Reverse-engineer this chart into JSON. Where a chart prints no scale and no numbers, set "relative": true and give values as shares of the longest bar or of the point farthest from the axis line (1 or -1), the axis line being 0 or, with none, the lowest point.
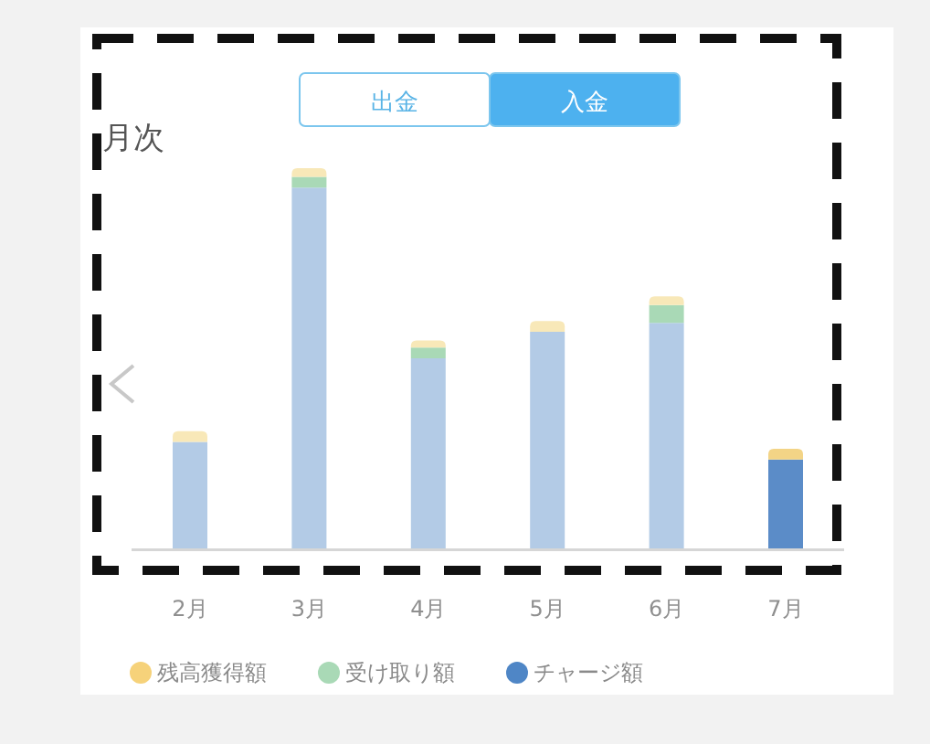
{
  "chart_data": {
    "type": "bar",
    "title": "月次",
    "stacked": true,
    "relative": true,
    "legend": "bottom",
    "categories": [
      "2月",
      "3月",
      "4月",
      "5月",
      "6月",
      "7月"
    ],
    "annotations": [
      "出金",
      "入金"
    ],
    "series": [
      {
        "name": "チャージ額",
        "color": "#4f86c6",
        "colors": [
          "#b3cbe6",
          "#b3cbe6",
          "#b3cbe6",
          "#b3cbe6",
          "#b3cbe6",
          "#5b8cc8"
        ],
        "values": [
          0.28,
          0.949,
          0.5,
          0.57,
          0.593,
          0.234
        ]
      },
      {
        "name": "受け取り額",
        "color": "#a9d9b6",
        "values": [
          0,
          0.028,
          0.028,
          0,
          0.047,
          0
        ]
      },
      {
        "name": "残高獲得額",
        "color": "#f6d27a",
        "colors": [
          "#f8e8b8",
          "#f8e8b8",
          "#f8e8b8",
          "#f8e8b8",
          "#f8e8b8",
          "#f3d486"
        ],
        "values": [
          0.028,
          0.023,
          0.019,
          0.028,
          0.023,
          0.028
        ]
      }
    ]
  }
}
